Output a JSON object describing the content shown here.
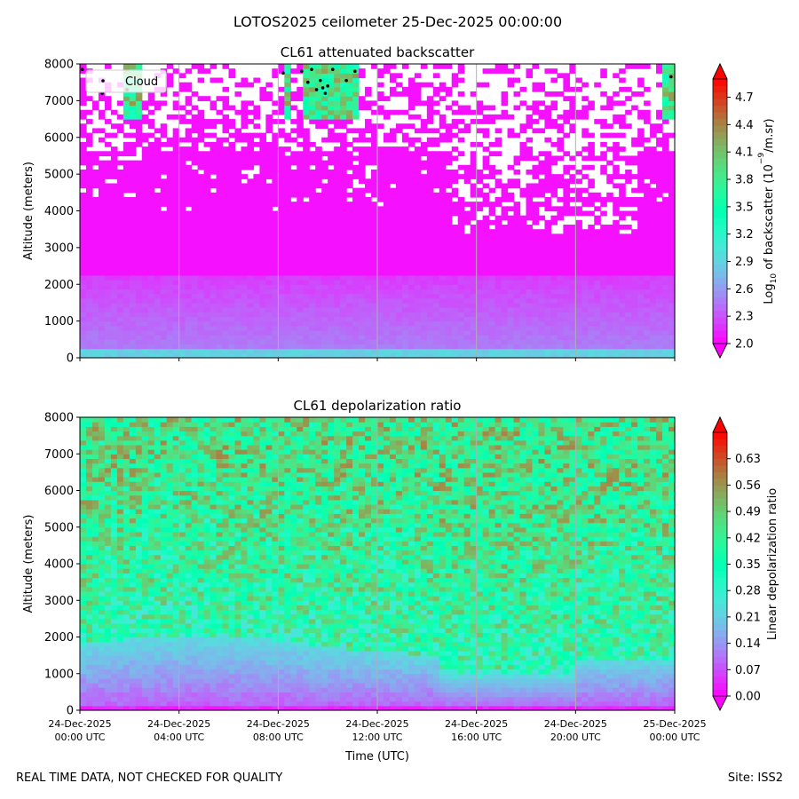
{
  "figure": {
    "suptitle": "LOTOS2025 ceilometer 25-Dec-2025 00:00:00",
    "footer_left": "REAL TIME DATA, NOT CHECKED FOR QUALITY",
    "footer_right": "Site: ISS2"
  },
  "chart_data": [
    {
      "type": "heatmap",
      "title": "CL61 attenuated backscatter",
      "ylabel": "Altitude (meters)",
      "xlabel": "",
      "ylim": [
        0,
        8000
      ],
      "yticks": [
        0,
        1000,
        2000,
        3000,
        4000,
        5000,
        6000,
        7000,
        8000
      ],
      "x_hours": [
        0,
        4,
        8,
        12,
        16,
        20,
        24
      ],
      "x_tick_labels": [
        [
          "24-Dec-2025",
          "00:00 UTC"
        ],
        [
          "24-Dec-2025",
          "04:00 UTC"
        ],
        [
          "24-Dec-2025",
          "08:00 UTC"
        ],
        [
          "24-Dec-2025",
          "12:00 UTC"
        ],
        [
          "24-Dec-2025",
          "16:00 UTC"
        ],
        [
          "24-Dec-2025",
          "20:00 UTC"
        ],
        [
          "25-Dec-2025",
          "00:00 UTC"
        ]
      ],
      "grid_hours": [
        4,
        8,
        12,
        16,
        20
      ],
      "show_x_tick_labels": false,
      "legend": {
        "label": "Cloud",
        "position": "top-left"
      },
      "colorbar": {
        "label": "Log10 of backscatter (10^-9/m.sr)",
        "label_main": "Log",
        "label_sub": "10",
        "label_rest": " of backscatter (10",
        "label_sup": "−9",
        "label_end": "/m.sr)",
        "range": [
          2.0,
          4.9
        ],
        "ticks": [
          "2.0",
          "2.3",
          "2.6",
          "2.9",
          "3.2",
          "3.5",
          "3.8",
          "4.1",
          "4.4",
          "4.7"
        ],
        "extend": "both"
      },
      "cloud_points": [
        {
          "hour": 0.1,
          "alt": 7850
        },
        {
          "hour": 0.9,
          "alt": 7200
        },
        {
          "hour": 1.9,
          "alt": 7300
        },
        {
          "hour": 8.2,
          "alt": 7750
        },
        {
          "hour": 8.95,
          "alt": 7800
        },
        {
          "hour": 9.2,
          "alt": 7500
        },
        {
          "hour": 9.35,
          "alt": 7850
        },
        {
          "hour": 9.55,
          "alt": 7300
        },
        {
          "hour": 9.7,
          "alt": 7550
        },
        {
          "hour": 9.8,
          "alt": 7350
        },
        {
          "hour": 9.9,
          "alt": 7200
        },
        {
          "hour": 10.0,
          "alt": 7400
        },
        {
          "hour": 10.2,
          "alt": 7850
        },
        {
          "hour": 10.75,
          "alt": 7550
        },
        {
          "hour": 11.1,
          "alt": 7800
        },
        {
          "hour": 23.85,
          "alt": 7650
        }
      ]
    },
    {
      "type": "heatmap",
      "title": "CL61 depolarization ratio",
      "ylabel": "Altitude (meters)",
      "xlabel": "Time (UTC)",
      "ylim": [
        0,
        8000
      ],
      "yticks": [
        0,
        1000,
        2000,
        3000,
        4000,
        5000,
        6000,
        7000,
        8000
      ],
      "x_hours": [
        0,
        4,
        8,
        12,
        16,
        20,
        24
      ],
      "x_tick_labels": [
        [
          "24-Dec-2025",
          "00:00 UTC"
        ],
        [
          "24-Dec-2025",
          "04:00 UTC"
        ],
        [
          "24-Dec-2025",
          "08:00 UTC"
        ],
        [
          "24-Dec-2025",
          "12:00 UTC"
        ],
        [
          "24-Dec-2025",
          "16:00 UTC"
        ],
        [
          "24-Dec-2025",
          "20:00 UTC"
        ],
        [
          "25-Dec-2025",
          "00:00 UTC"
        ]
      ],
      "grid_hours": [
        4,
        8,
        12,
        16,
        20
      ],
      "show_x_tick_labels": true,
      "colorbar": {
        "label": "Linear depolarization ratio",
        "range": [
          0.0,
          0.7
        ],
        "ticks": [
          "0.00",
          "0.07",
          "0.14",
          "0.21",
          "0.28",
          "0.35",
          "0.42",
          "0.49",
          "0.56",
          "0.63"
        ],
        "extend": "both"
      }
    }
  ]
}
